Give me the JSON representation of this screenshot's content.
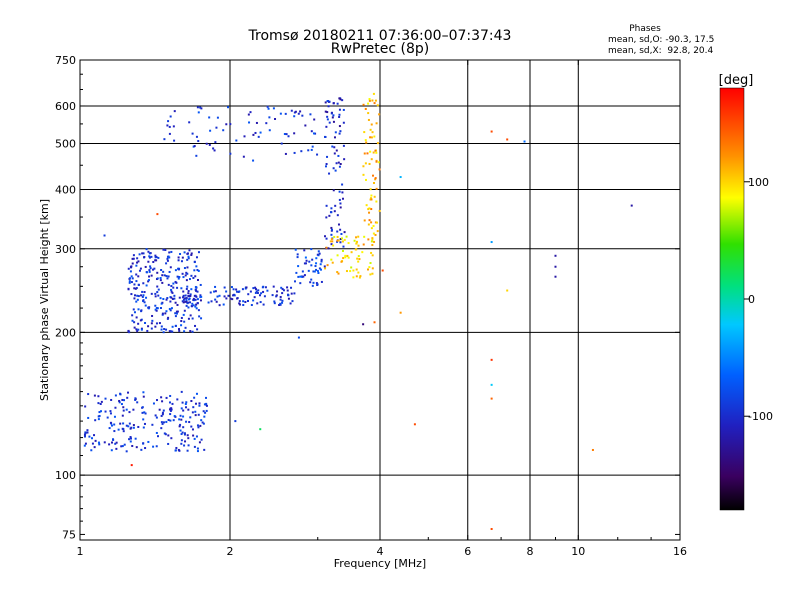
{
  "chart_data": {
    "type": "scatter",
    "title": "Tromsø 20180211 07:36:00–07:37:43",
    "subtitle": "RwPretec (8p)",
    "xlabel": "Frequency [MHz]",
    "ylabel": "Stationary phase Virtual Height [km]",
    "xscale": "log2",
    "yscale": "log",
    "xlim": [
      1,
      16
    ],
    "ylim": [
      73,
      750
    ],
    "x_ticks": [
      1,
      2,
      4,
      6,
      8,
      10,
      16
    ],
    "y_ticks": [
      75,
      100,
      200,
      300,
      400,
      500,
      600,
      750
    ],
    "x_grid": [
      2,
      4,
      6,
      8,
      10
    ],
    "y_grid": [
      100,
      200,
      300,
      400,
      500,
      600
    ],
    "info": {
      "heading": "Phases",
      "line_o": "mean, sd,O: -90.3, 17.5",
      "line_x": "mean, sd,X:  92.8, 20.4"
    },
    "colorbar": {
      "label": "[deg]",
      "min": -180,
      "max": 180,
      "ticks": [
        100,
        0,
        -100
      ]
    },
    "clusters": [
      {
        "name": "E-layer trace",
        "xmin": 1.02,
        "xmax": 1.8,
        "hmin": 112,
        "hmax": 150,
        "phase": -95,
        "count": 230
      },
      {
        "name": "F1-layer trace",
        "xmin": 1.25,
        "xmax": 1.75,
        "hmin": 200,
        "hmax": 300,
        "phase": -95,
        "count": 300
      },
      {
        "name": "F trace low",
        "xmin": 1.6,
        "xmax": 2.7,
        "hmin": 228,
        "hmax": 250,
        "phase": -95,
        "count": 120
      },
      {
        "name": "F trace rising",
        "xmin": 2.7,
        "xmax": 3.1,
        "hmin": 250,
        "hmax": 300,
        "phase": -85,
        "count": 50
      },
      {
        "name": "O-mode cusp",
        "xmin": 3.1,
        "xmax": 3.4,
        "hmin": 300,
        "hmax": 630,
        "phase": -105,
        "count": 90
      },
      {
        "name": "Upper F trace",
        "xmin": 1.4,
        "xmax": 3.0,
        "hmin": 460,
        "hmax": 600,
        "phase": -95,
        "count": 80
      },
      {
        "name": "X-mode trace",
        "xmin": 3.1,
        "xmax": 3.9,
        "hmin": 260,
        "hmax": 320,
        "phase": 100,
        "count": 70
      },
      {
        "name": "X-mode cusp",
        "xmin": 3.7,
        "xmax": 4.0,
        "hmin": 320,
        "hmax": 640,
        "phase": 110,
        "count": 70
      }
    ],
    "scattered_points": [
      {
        "x": 1.27,
        "h": 105,
        "phase": 170
      },
      {
        "x": 1.43,
        "h": 355,
        "phase": 150
      },
      {
        "x": 1.12,
        "h": 320,
        "phase": -90
      },
      {
        "x": 2.05,
        "h": 130,
        "phase": -90
      },
      {
        "x": 2.3,
        "h": 125,
        "phase": 20
      },
      {
        "x": 4.7,
        "h": 128,
        "phase": 150
      },
      {
        "x": 4.4,
        "h": 425,
        "phase": -30
      },
      {
        "x": 4.05,
        "h": 270,
        "phase": 150
      },
      {
        "x": 4.4,
        "h": 220,
        "phase": 120
      },
      {
        "x": 6.7,
        "h": 530,
        "phase": 150
      },
      {
        "x": 7.2,
        "h": 510,
        "phase": 150
      },
      {
        "x": 7.8,
        "h": 505,
        "phase": -60
      },
      {
        "x": 6.7,
        "h": 310,
        "phase": -40
      },
      {
        "x": 7.2,
        "h": 245,
        "phase": 100
      },
      {
        "x": 6.7,
        "h": 175,
        "phase": 160
      },
      {
        "x": 6.7,
        "h": 155,
        "phase": -20
      },
      {
        "x": 6.7,
        "h": 145,
        "phase": 140
      },
      {
        "x": 6.7,
        "h": 77,
        "phase": 150
      },
      {
        "x": 9.0,
        "h": 290,
        "phase": -120
      },
      {
        "x": 9.0,
        "h": 275,
        "phase": -120
      },
      {
        "x": 9.0,
        "h": 262,
        "phase": -120
      },
      {
        "x": 12.8,
        "h": 370,
        "phase": -120
      },
      {
        "x": 10.7,
        "h": 113,
        "phase": 130
      },
      {
        "x": 3.9,
        "h": 210,
        "phase": 140
      },
      {
        "x": 3.7,
        "h": 208,
        "phase": -140
      },
      {
        "x": 2.75,
        "h": 195,
        "phase": -80
      }
    ]
  }
}
